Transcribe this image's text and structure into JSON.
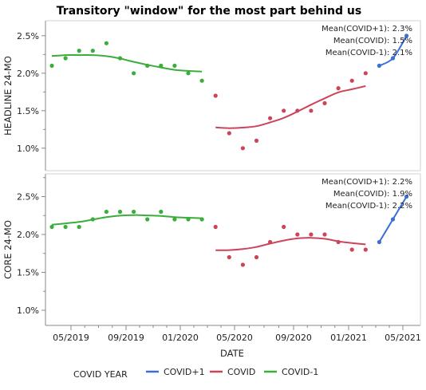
{
  "title": "Transitory \"window\" for the most part behind us",
  "xlabel": "DATE",
  "legend_title": "COVID YEAR",
  "colors": {
    "COVID+1": "#3b6fd6",
    "COVID": "#cc4459",
    "COVID-1": "#3aad3a",
    "axis": "#888888"
  },
  "x_ticks": [
    "05/2019",
    "09/2019",
    "01/2020",
    "05/2020",
    "09/2020",
    "01/2021",
    "05/2021"
  ],
  "chart_data": [
    {
      "type": "scatter",
      "ylabel": "HEADLINE 24-MO",
      "ylim": [
        0.7,
        2.7
      ],
      "y_ticks": [
        "1.0%",
        "1.5%",
        "2.0%",
        "2.5%"
      ],
      "annotations": [
        "Mean(COVID+1): 2.3%",
        "Mean(COVID): 1.5%",
        "Mean(COVID-1): 2.1%"
      ],
      "series": [
        {
          "name": "COVID-1",
          "x": [
            "2019-03",
            "2019-04",
            "2019-05",
            "2019-06",
            "2019-07",
            "2019-08",
            "2019-09",
            "2019-10",
            "2019-11",
            "2019-12",
            "2020-01",
            "2020-02"
          ],
          "y": [
            2.1,
            2.2,
            2.3,
            2.3,
            2.4,
            2.2,
            2.0,
            2.1,
            2.1,
            2.1,
            2.0,
            1.9
          ]
        },
        {
          "name": "COVID",
          "x": [
            "2020-03",
            "2020-04",
            "2020-05",
            "2020-06",
            "2020-07",
            "2020-08",
            "2020-09",
            "2020-10",
            "2020-11",
            "2020-12",
            "2021-01",
            "2021-02"
          ],
          "y": [
            1.7,
            1.2,
            1.0,
            1.1,
            1.4,
            1.5,
            1.5,
            1.5,
            1.6,
            1.8,
            1.9,
            2.0
          ]
        },
        {
          "name": "COVID+1",
          "x": [
            "2021-03",
            "2021-04",
            "2021-05"
          ],
          "y": [
            2.1,
            2.2,
            2.5
          ]
        }
      ]
    },
    {
      "type": "scatter",
      "ylabel": "CORE 24-MO",
      "ylim": [
        0.8,
        2.8
      ],
      "y_ticks": [
        "1.0%",
        "1.5%",
        "2.0%",
        "2.5%"
      ],
      "annotations": [
        "Mean(COVID+1): 2.2%",
        "Mean(COVID): 1.9%",
        "Mean(COVID-1): 2.2%"
      ],
      "series": [
        {
          "name": "COVID-1",
          "x": [
            "2019-03",
            "2019-04",
            "2019-05",
            "2019-06",
            "2019-07",
            "2019-08",
            "2019-09",
            "2019-10",
            "2019-11",
            "2019-12",
            "2020-01",
            "2020-02"
          ],
          "y": [
            2.1,
            2.1,
            2.1,
            2.2,
            2.3,
            2.3,
            2.3,
            2.2,
            2.3,
            2.2,
            2.2,
            2.2
          ]
        },
        {
          "name": "COVID",
          "x": [
            "2020-03",
            "2020-04",
            "2020-05",
            "2020-06",
            "2020-07",
            "2020-08",
            "2020-09",
            "2020-10",
            "2020-11",
            "2020-12",
            "2021-01",
            "2021-02"
          ],
          "y": [
            2.1,
            1.7,
            1.6,
            1.7,
            1.9,
            2.1,
            2.0,
            2.0,
            2.0,
            1.9,
            1.8,
            1.8
          ]
        },
        {
          "name": "COVID+1",
          "x": [
            "2021-03",
            "2021-04",
            "2021-05"
          ],
          "y": [
            1.9,
            2.2,
            2.5
          ]
        }
      ]
    }
  ]
}
